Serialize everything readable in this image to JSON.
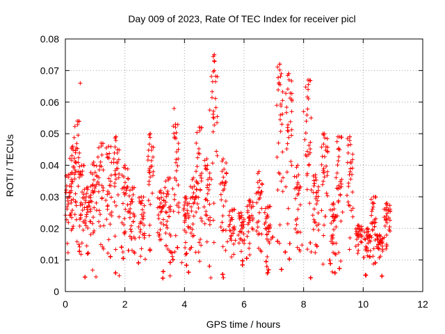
{
  "chart_data": {
    "type": "scatter",
    "title": "Day 009 of 2023, Rate Of TEC Index for receiver picl",
    "xlabel": "GPS time / hours",
    "ylabel": "ROTI / TECUs",
    "xlim": [
      0,
      12
    ],
    "ylim": [
      0,
      0.08
    ],
    "xticks": [
      0,
      2,
      4,
      6,
      8,
      10,
      12
    ],
    "xtick_labels": [
      "0",
      "2",
      "4",
      "6",
      "8",
      "10",
      "12"
    ],
    "yticks": [
      0,
      0.01,
      0.02,
      0.03,
      0.04,
      0.05,
      0.06,
      0.07,
      0.08
    ],
    "ytick_labels": [
      "0",
      "0.01",
      "0.02",
      "0.03",
      "0.04",
      "0.05",
      "0.06",
      "0.07",
      "0.08"
    ],
    "grid": true,
    "marker": "+",
    "color": "#ff0000",
    "data_x_range": [
      0,
      10.85
    ],
    "notable_points": [
      {
        "x": 0.5,
        "y": 0.066
      },
      {
        "x": 5.0,
        "y": 0.075
      },
      {
        "x": 5.0,
        "y": 0.073
      },
      {
        "x": 5.0,
        "y": 0.07
      },
      {
        "x": 7.2,
        "y": 0.072
      },
      {
        "x": 7.25,
        "y": 0.069
      },
      {
        "x": 7.5,
        "y": 0.069
      },
      {
        "x": 8.15,
        "y": 0.067
      },
      {
        "x": 8.15,
        "y": 0.064
      },
      {
        "x": 3.65,
        "y": 0.058
      },
      {
        "x": 4.85,
        "y": 0.0575
      },
      {
        "x": 7.6,
        "y": 0.057
      },
      {
        "x": 7.1,
        "y": 0.059
      },
      {
        "x": 0.45,
        "y": 0.054
      },
      {
        "x": 8.0,
        "y": 0.057
      },
      {
        "x": 8.25,
        "y": 0.055
      },
      {
        "x": 3.7,
        "y": 0.052
      },
      {
        "x": 4.5,
        "y": 0.052
      },
      {
        "x": 2.85,
        "y": 0.05
      },
      {
        "x": 9.15,
        "y": 0.049
      },
      {
        "x": 9.55,
        "y": 0.049
      },
      {
        "x": 8.65,
        "y": 0.05
      },
      {
        "x": 1.7,
        "y": 0.049
      }
    ],
    "peaks": [
      {
        "x": 0.1,
        "y": 0.037
      },
      {
        "x": 0.25,
        "y": 0.046
      },
      {
        "x": 0.4,
        "y": 0.054
      },
      {
        "x": 0.55,
        "y": 0.04
      },
      {
        "x": 0.75,
        "y": 0.033
      },
      {
        "x": 0.95,
        "y": 0.041
      },
      {
        "x": 1.2,
        "y": 0.047
      },
      {
        "x": 1.45,
        "y": 0.046
      },
      {
        "x": 1.7,
        "y": 0.049
      },
      {
        "x": 2.0,
        "y": 0.04
      },
      {
        "x": 2.25,
        "y": 0.033
      },
      {
        "x": 2.55,
        "y": 0.03
      },
      {
        "x": 2.85,
        "y": 0.05
      },
      {
        "x": 3.2,
        "y": 0.032
      },
      {
        "x": 3.45,
        "y": 0.036
      },
      {
        "x": 3.7,
        "y": 0.053
      },
      {
        "x": 4.05,
        "y": 0.03
      },
      {
        "x": 4.3,
        "y": 0.036
      },
      {
        "x": 4.5,
        "y": 0.052
      },
      {
        "x": 4.75,
        "y": 0.042
      },
      {
        "x": 5.0,
        "y": 0.075
      },
      {
        "x": 5.3,
        "y": 0.042
      },
      {
        "x": 5.6,
        "y": 0.026
      },
      {
        "x": 5.9,
        "y": 0.025
      },
      {
        "x": 6.2,
        "y": 0.029
      },
      {
        "x": 6.5,
        "y": 0.038
      },
      {
        "x": 6.8,
        "y": 0.027
      },
      {
        "x": 7.2,
        "y": 0.072
      },
      {
        "x": 7.5,
        "y": 0.069
      },
      {
        "x": 7.8,
        "y": 0.04
      },
      {
        "x": 8.15,
        "y": 0.067
      },
      {
        "x": 8.4,
        "y": 0.037
      },
      {
        "x": 8.7,
        "y": 0.05
      },
      {
        "x": 9.0,
        "y": 0.028
      },
      {
        "x": 9.2,
        "y": 0.049
      },
      {
        "x": 9.55,
        "y": 0.049
      },
      {
        "x": 9.85,
        "y": 0.021
      },
      {
        "x": 10.15,
        "y": 0.02
      },
      {
        "x": 10.35,
        "y": 0.03
      },
      {
        "x": 10.55,
        "y": 0.018
      },
      {
        "x": 10.8,
        "y": 0.028
      }
    ]
  }
}
